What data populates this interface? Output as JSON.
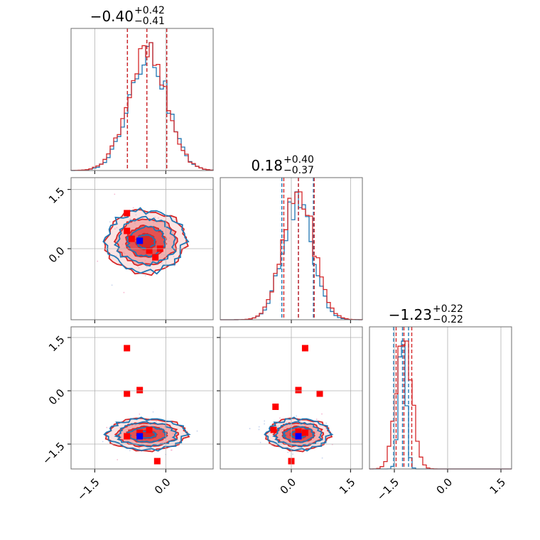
{
  "chart_data": {
    "type": "corner",
    "parameters": 3,
    "titles": [
      {
        "median": "−0.40",
        "plus": "+0.42",
        "minus": "−0.41"
      },
      {
        "median": "0.18",
        "plus": "+0.40",
        "minus": "−0.37"
      },
      {
        "median": "−1.23",
        "plus": "+0.22",
        "minus": "−0.22"
      }
    ],
    "ranges": [
      [
        -2.0,
        1.0
      ],
      [
        -1.8,
        1.8
      ],
      [
        -2.2,
        1.8
      ]
    ],
    "ticks": {
      "x": [
        {
          "values": [
            -1.5,
            0.0
          ],
          "labels": [
            "−1.5",
            "0.0"
          ]
        },
        {
          "values": [
            0.0,
            1.5
          ],
          "labels": [
            "0.0",
            "1.5"
          ]
        },
        {
          "values": [
            -1.5,
            0.0,
            1.5
          ],
          "labels": [
            "−1.5",
            "0.0",
            "1.5"
          ]
        }
      ],
      "y": [
        {
          "values": [],
          "labels": []
        },
        {
          "values": [
            0.0,
            1.5
          ],
          "labels": [
            "0.0",
            "1.5"
          ]
        },
        {
          "values": [
            -1.5,
            0.0,
            1.5
          ],
          "labels": [
            "−1.5",
            "0.0",
            "1.5"
          ]
        }
      ]
    },
    "grid": true,
    "colors": {
      "blue": "#1f77b4",
      "red": "#d62728",
      "red_fill": "#f08080",
      "marker_red": "#ff0000",
      "marker_blue": "#0000ff"
    },
    "marginals": [
      {
        "mu": -0.4,
        "sigma": 0.41,
        "blue": {
          "mu": -0.38,
          "sigma": 0.4,
          "quantiles": [
            -0.81,
            -0.4,
            0.02
          ]
        },
        "red": {
          "mu": -0.4,
          "sigma": 0.41,
          "quantiles": [
            -0.81,
            -0.4,
            0.02
          ]
        }
      },
      {
        "mu": 0.18,
        "sigma": 0.39,
        "blue": {
          "mu": 0.15,
          "sigma": 0.38,
          "quantiles": [
            -0.24,
            0.18,
            0.56
          ]
        },
        "red": {
          "mu": 0.18,
          "sigma": 0.39,
          "quantiles": [
            -0.19,
            0.18,
            0.58
          ]
        }
      },
      {
        "mu": -1.23,
        "sigma": 0.22,
        "blue": {
          "mu": -1.27,
          "sigma": 0.1,
          "quantiles": [
            -1.52,
            -1.27,
            -1.1
          ]
        },
        "red": {
          "mu": -1.23,
          "sigma": 0.22,
          "quantiles": [
            -1.45,
            -1.23,
            -1.01
          ]
        }
      }
    ],
    "joint_centers": {
      "1_0": {
        "x": -0.42,
        "y": 0.18
      },
      "2_0": {
        "x": -0.4,
        "y": -1.23
      },
      "2_1": {
        "x": 0.18,
        "y": -1.23
      }
    },
    "markers_red": {
      "1_0": [
        [
          -0.82,
          0.9
        ],
        [
          -0.82,
          0.45
        ],
        [
          -0.72,
          0.25
        ],
        [
          -0.55,
          0.2
        ],
        [
          -0.35,
          -0.05
        ],
        [
          -0.22,
          -0.22
        ],
        [
          -0.12,
          0.0
        ]
      ],
      "2_0": [
        [
          -0.82,
          1.2
        ],
        [
          -0.82,
          -0.08
        ],
        [
          -0.55,
          0.02
        ],
        [
          -0.55,
          -1.18
        ],
        [
          -0.35,
          -1.1
        ],
        [
          -0.82,
          -1.28
        ],
        [
          -0.18,
          -1.98
        ]
      ],
      "2_1": [
        [
          0.35,
          1.2
        ],
        [
          -0.4,
          -0.45
        ],
        [
          0.18,
          0.02
        ],
        [
          0.72,
          -0.08
        ],
        [
          -0.45,
          -1.1
        ],
        [
          0.18,
          -1.15
        ],
        [
          0.35,
          -1.18
        ],
        [
          0.0,
          -1.98
        ]
      ]
    },
    "markers_blue": {
      "1_0": [
        [
          -0.55,
          0.2
        ]
      ],
      "2_0": [
        [
          -0.55,
          -1.28
        ]
      ],
      "2_1": [
        [
          0.18,
          -1.28
        ]
      ]
    }
  }
}
